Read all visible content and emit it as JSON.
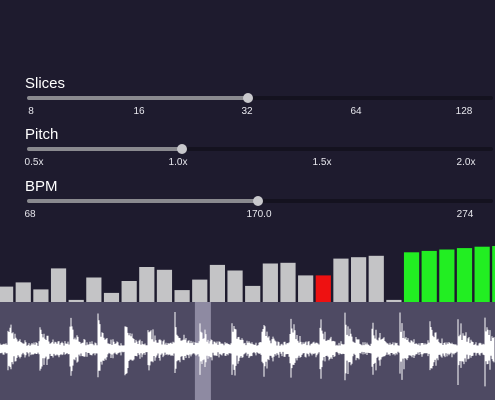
{
  "controls": [
    {
      "id": "slices",
      "label": "Slices",
      "ticks": [
        "8",
        "16",
        "32",
        "64",
        "128"
      ],
      "value": "32",
      "value_fraction": 0.475
    },
    {
      "id": "pitch",
      "label": "Pitch",
      "ticks": [
        "0.5x",
        "1.0x",
        "1.5x",
        "2.0x"
      ],
      "value": "1.0x",
      "value_fraction": 0.333
    },
    {
      "id": "bpm",
      "label": "BPM",
      "ticks": [
        "68",
        "170.0",
        "274"
      ],
      "value": "170.0",
      "value_fraction": 0.495
    }
  ],
  "slice_meter": {
    "levels": [
      0.22,
      0.28,
      0.18,
      0.48,
      0.03,
      0.35,
      0.13,
      0.3,
      0.5,
      0.46,
      0.17,
      0.32,
      0.53,
      0.45,
      0.23,
      0.55,
      0.56,
      0.38,
      0.38,
      0.62,
      0.64,
      0.66,
      0.03,
      0.71,
      0.73,
      0.75,
      0.77,
      0.79,
      0.8
    ],
    "states": [
      "normal",
      "normal",
      "normal",
      "normal",
      "normal",
      "normal",
      "normal",
      "normal",
      "normal",
      "normal",
      "normal",
      "normal",
      "normal",
      "normal",
      "normal",
      "normal",
      "normal",
      "normal",
      "selected",
      "normal",
      "normal",
      "normal",
      "normal",
      "active",
      "active",
      "active",
      "active",
      "active",
      "active"
    ],
    "colors": {
      "normal": "#c4c4c6",
      "selected": "#ee1111",
      "active": "#22ee22"
    }
  },
  "waveform": {
    "background": "#4e4a63",
    "color": "#ffffff",
    "playhead_position": 0.41,
    "playhead_color": "#8e8aa2"
  }
}
